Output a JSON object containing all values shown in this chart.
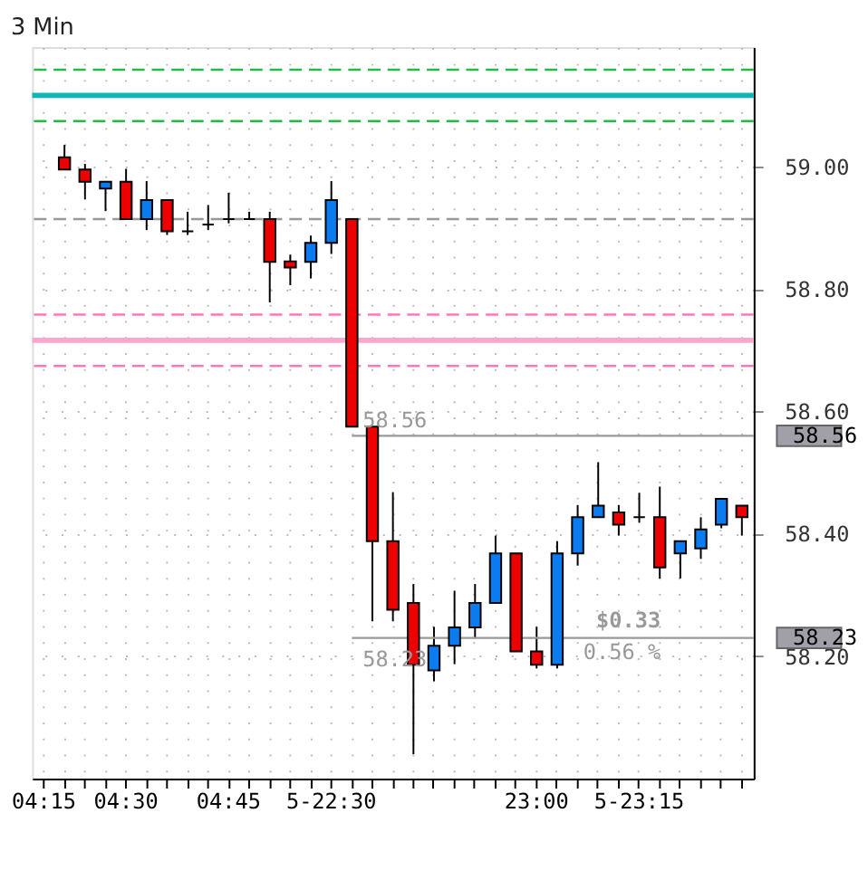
{
  "chart_data": {
    "type": "candlestick",
    "title": "3 Min",
    "categories": [
      "04:15",
      null,
      null,
      null,
      "04:30",
      null,
      null,
      null,
      null,
      "04:45",
      null,
      null,
      null,
      null,
      "5-22:30",
      null,
      null,
      null,
      null,
      null,
      null,
      null,
      null,
      null,
      "23:00",
      null,
      null,
      null,
      null,
      "5-23:15",
      null,
      null,
      null,
      null,
      null
    ],
    "ohlc": [
      null,
      [
        59.015,
        59.035,
        58.995,
        58.995
      ],
      [
        58.995,
        59.004,
        58.946,
        58.975
      ],
      [
        58.964,
        58.975,
        58.927,
        58.975
      ],
      [
        58.975,
        58.996,
        58.914,
        58.914
      ],
      [
        58.914,
        58.976,
        58.896,
        58.945
      ],
      [
        58.945,
        58.945,
        58.888,
        58.894
      ],
      [
        58.894,
        58.926,
        58.888,
        58.894
      ],
      [
        58.905,
        58.937,
        58.896,
        58.905
      ],
      [
        58.914,
        58.957,
        58.907,
        58.914
      ],
      [
        58.914,
        58.926,
        58.914,
        58.914
      ],
      [
        58.914,
        58.926,
        58.778,
        58.844
      ],
      [
        58.845,
        58.856,
        58.806,
        58.835
      ],
      [
        58.844,
        58.887,
        58.817,
        58.875
      ],
      [
        58.875,
        58.976,
        58.857,
        58.945
      ],
      [
        58.914,
        58.914,
        58.575,
        58.575
      ],
      [
        58.575,
        58.575,
        58.257,
        58.388
      ],
      [
        58.388,
        58.468,
        58.257,
        58.276
      ],
      [
        58.287,
        58.318,
        58.04,
        58.186
      ],
      [
        58.177,
        58.248,
        58.159,
        58.217
      ],
      [
        58.217,
        58.307,
        58.187,
        58.247
      ],
      [
        58.247,
        58.318,
        58.229,
        58.287
      ],
      [
        58.287,
        58.397,
        58.287,
        58.368
      ],
      [
        58.368,
        58.368,
        58.208,
        58.208
      ],
      [
        58.208,
        58.248,
        58.18,
        58.186
      ],
      [
        58.186,
        58.388,
        58.18,
        58.368
      ],
      [
        58.368,
        58.447,
        58.348,
        58.427
      ],
      [
        58.427,
        58.517,
        58.427,
        58.446
      ],
      [
        58.435,
        58.447,
        58.397,
        58.415
      ],
      [
        58.427,
        58.467,
        58.418,
        58.427
      ],
      [
        58.427,
        58.477,
        58.327,
        58.345
      ],
      [
        58.368,
        58.388,
        58.327,
        58.388
      ],
      [
        58.376,
        58.427,
        58.359,
        58.407
      ],
      [
        58.415,
        58.457,
        58.409,
        58.457
      ],
      [
        58.446,
        58.446,
        58.397,
        58.427
      ]
    ],
    "colors": [
      null,
      "#ee0000",
      "#ee0000",
      "#0a7cf0",
      "#ee0000",
      "#0a7cf0",
      "#ee0000",
      "#000000",
      "#000000",
      "#000000",
      "#000000",
      "#ee0000",
      "#ee0000",
      "#0a7cf0",
      "#0a7cf0",
      "#ee0000",
      "#ee0000",
      "#ee0000",
      "#ee0000",
      "#0a7cf0",
      "#0a7cf0",
      "#0a7cf0",
      "#0a7cf0",
      "#ee0000",
      "#ee0000",
      "#0a7cf0",
      "#0a7cf0",
      "#0a7cf0",
      "#ee0000",
      "#000000",
      "#ee0000",
      "#0a7cf0",
      "#0a7cf0",
      "#0a7cf0",
      "#ee0000"
    ],
    "ylim": [
      58.0,
      59.195
    ],
    "yticks": [
      {
        "value": 58.2,
        "label": "58.20"
      },
      {
        "value": 58.4,
        "label": "58.40"
      },
      {
        "value": 58.6,
        "label": "58.60"
      },
      {
        "value": 58.8,
        "label": "58.80"
      },
      {
        "value": 59.0,
        "label": "59.00"
      }
    ],
    "grid": true,
    "ref_lines": [
      {
        "axis": "y",
        "value": 59.158,
        "color": "#22bb44",
        "line_style": "dashed"
      },
      {
        "axis": "y",
        "value": 59.116,
        "color": "#11b5b5",
        "line_style": "solid"
      },
      {
        "axis": "y",
        "value": 59.074,
        "color": "#22bb44",
        "line_style": "dashed"
      },
      {
        "axis": "y",
        "value": 58.914,
        "color": "#999999",
        "line_style": "dashed"
      },
      {
        "axis": "y",
        "value": 58.758,
        "color": "#ff77bb",
        "line_style": "dashed"
      },
      {
        "axis": "y",
        "value": 58.716,
        "color": "#f7a8cc",
        "line_style": "solid"
      },
      {
        "axis": "y",
        "value": 58.674,
        "color": "#ff77bb",
        "line_style": "dashed"
      },
      {
        "axis": "y",
        "value": 58.56,
        "label": "58.56",
        "color": "#999999",
        "line_style": "solid"
      },
      {
        "axis": "y",
        "value": 58.23,
        "label": "58.23",
        "color": "#999999",
        "line_style": "solid"
      }
    ],
    "annotations": [
      "58.56",
      "58.23",
      "$0.33",
      "0.56 %"
    ]
  }
}
